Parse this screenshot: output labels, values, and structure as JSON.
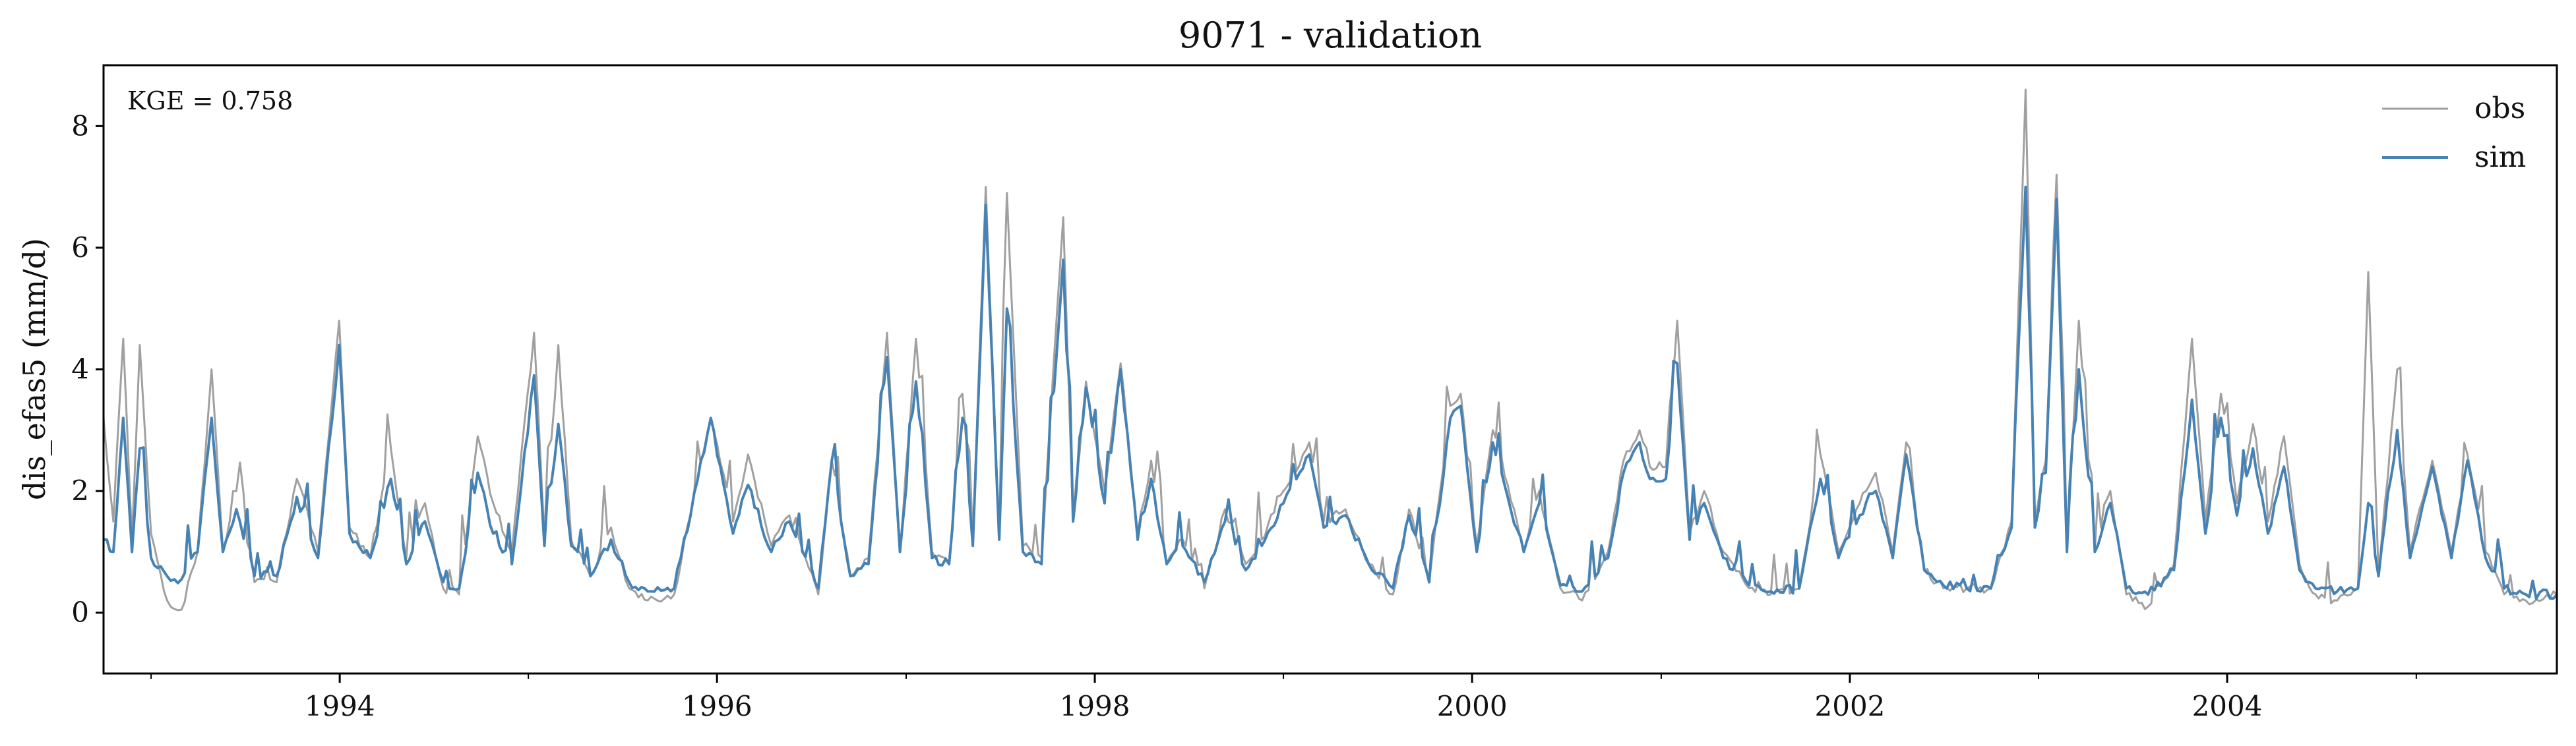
{
  "chart_data": {
    "type": "line",
    "title": "9071 - validation",
    "xlabel": "",
    "ylabel": "dis_efas5 (mm/d)",
    "annotation": "KGE = 0.758",
    "xlim": [
      "1992-10-01",
      "2005-09-30"
    ],
    "ylim": [
      -1,
      9
    ],
    "x_ticks": [
      "1994",
      "1996",
      "1998",
      "2000",
      "2002",
      "2004"
    ],
    "y_ticks": [
      "0",
      "2",
      "4",
      "6",
      "8"
    ],
    "grid": false,
    "legend": "top-right",
    "series": [
      {
        "name": "obs",
        "color": "#a0a0a0",
        "points": [
          [
            "1992-10-01",
            3.2
          ],
          [
            "1992-10-20",
            1.5
          ],
          [
            "1992-11-08",
            4.5
          ],
          [
            "1992-11-25",
            1.2
          ],
          [
            "1992-12-10",
            4.4
          ],
          [
            "1993-01-01",
            1.3
          ],
          [
            "1993-02-01",
            0.2
          ],
          [
            "1993-03-01",
            0.05
          ],
          [
            "1993-04-01",
            1.0
          ],
          [
            "1993-04-28",
            4.0
          ],
          [
            "1993-05-20",
            1.0
          ],
          [
            "1993-06-15",
            2.0
          ],
          [
            "1993-07-20",
            0.5
          ],
          [
            "1993-09-01",
            0.5
          ],
          [
            "1993-10-10",
            2.2
          ],
          [
            "1993-11-20",
            1.0
          ],
          [
            "1993-12-31",
            4.8
          ],
          [
            "1994-01-20",
            1.4
          ],
          [
            "1994-03-01",
            0.9
          ],
          [
            "1994-04-10",
            2.7
          ],
          [
            "1994-05-10",
            0.9
          ],
          [
            "1994-06-15",
            1.8
          ],
          [
            "1994-07-20",
            0.4
          ],
          [
            "1994-08-20",
            0.3
          ],
          [
            "1994-09-25",
            2.9
          ],
          [
            "1994-10-25",
            1.8
          ],
          [
            "1994-11-30",
            1.0
          ],
          [
            "1995-01-12",
            4.6
          ],
          [
            "1995-02-01",
            1.2
          ],
          [
            "1995-02-28",
            4.4
          ],
          [
            "1995-03-25",
            1.2
          ],
          [
            "1995-05-01",
            0.6
          ],
          [
            "1995-06-10",
            1.4
          ],
          [
            "1995-07-15",
            0.4
          ],
          [
            "1995-08-20",
            0.2
          ],
          [
            "1995-10-10",
            0.3
          ],
          [
            "1995-12-20",
            3.2
          ],
          [
            "1996-02-01",
            1.5
          ],
          [
            "1996-03-01",
            2.6
          ],
          [
            "1996-04-15",
            1.1
          ],
          [
            "1996-05-20",
            1.6
          ],
          [
            "1996-07-15",
            0.3
          ],
          [
            "1996-08-10",
            2.5
          ],
          [
            "1996-09-15",
            0.6
          ],
          [
            "1996-10-20",
            0.9
          ],
          [
            "1996-11-25",
            4.6
          ],
          [
            "1996-12-20",
            1.0
          ],
          [
            "1997-01-20",
            4.5
          ],
          [
            "1997-02-20",
            1.0
          ],
          [
            "1997-03-25",
            0.8
          ],
          [
            "1997-04-20",
            3.6
          ],
          [
            "1997-05-10",
            1.2
          ],
          [
            "1997-06-04",
            7.0
          ],
          [
            "1997-06-30",
            1.2
          ],
          [
            "1997-07-15",
            6.9
          ],
          [
            "1997-08-15",
            1.1
          ],
          [
            "1997-09-20",
            0.9
          ],
          [
            "1997-11-01",
            6.5
          ],
          [
            "1997-11-20",
            1.5
          ],
          [
            "1997-12-15",
            3.8
          ],
          [
            "1998-01-20",
            2.0
          ],
          [
            "1998-02-20",
            4.1
          ],
          [
            "1998-03-25",
            1.3
          ],
          [
            "1998-04-20",
            2.5
          ],
          [
            "1998-05-20",
            0.8
          ],
          [
            "1998-06-20",
            1.2
          ],
          [
            "1998-08-01",
            0.4
          ],
          [
            "1998-09-10",
            1.7
          ],
          [
            "1998-10-20",
            0.8
          ],
          [
            "1998-11-20",
            1.2
          ],
          [
            "1999-01-01",
            2.0
          ],
          [
            "1999-02-20",
            2.8
          ],
          [
            "1999-03-20",
            1.5
          ],
          [
            "1999-05-01",
            1.7
          ],
          [
            "1999-06-15",
            0.8
          ],
          [
            "1999-08-01",
            0.3
          ],
          [
            "1999-09-01",
            1.7
          ],
          [
            "1999-10-10",
            0.5
          ],
          [
            "1999-11-20",
            3.4
          ],
          [
            "1999-12-10",
            3.6
          ],
          [
            "2000-01-10",
            1.1
          ],
          [
            "2000-02-10",
            3.0
          ],
          [
            "2000-03-10",
            2.1
          ],
          [
            "2000-04-10",
            1.0
          ],
          [
            "2000-05-10",
            2.0
          ],
          [
            "2000-06-20",
            0.4
          ],
          [
            "2000-08-01",
            0.2
          ],
          [
            "2000-09-20",
            1.0
          ],
          [
            "2000-10-20",
            2.5
          ],
          [
            "2000-11-20",
            3.0
          ],
          [
            "2000-12-10",
            2.4
          ],
          [
            "2001-01-10",
            2.4
          ],
          [
            "2001-02-01",
            4.8
          ],
          [
            "2001-02-25",
            1.3
          ],
          [
            "2001-03-25",
            2.0
          ],
          [
            "2001-05-01",
            1.0
          ],
          [
            "2001-06-20",
            0.4
          ],
          [
            "2001-08-01",
            0.3
          ],
          [
            "2001-09-25",
            0.4
          ],
          [
            "2001-11-05",
            2.6
          ],
          [
            "2001-12-10",
            1.0
          ],
          [
            "2002-01-20",
            1.8
          ],
          [
            "2002-02-20",
            2.3
          ],
          [
            "2002-03-25",
            1.0
          ],
          [
            "2002-04-20",
            2.8
          ],
          [
            "2002-05-25",
            0.7
          ],
          [
            "2002-07-01",
            0.4
          ],
          [
            "2002-08-15",
            0.4
          ],
          [
            "2002-10-01",
            0.4
          ],
          [
            "2002-11-10",
            1.5
          ],
          [
            "2002-12-07",
            8.6
          ],
          [
            "2002-12-25",
            1.5
          ],
          [
            "2003-01-15",
            2.5
          ],
          [
            "2003-02-05",
            7.2
          ],
          [
            "2003-02-25",
            1.0
          ],
          [
            "2003-03-20",
            4.8
          ],
          [
            "2003-04-20",
            1.0
          ],
          [
            "2003-05-20",
            2.0
          ],
          [
            "2003-06-20",
            0.3
          ],
          [
            "2003-08-01",
            0.1
          ],
          [
            "2003-09-20",
            0.8
          ],
          [
            "2003-10-25",
            4.5
          ],
          [
            "2003-11-20",
            1.5
          ],
          [
            "2003-12-20",
            3.6
          ],
          [
            "2004-01-20",
            1.8
          ],
          [
            "2004-02-20",
            3.1
          ],
          [
            "2004-03-20",
            1.5
          ],
          [
            "2004-04-20",
            2.9
          ],
          [
            "2004-05-20",
            0.8
          ],
          [
            "2004-06-20",
            0.3
          ],
          [
            "2004-08-01",
            0.2
          ],
          [
            "2004-09-10",
            0.4
          ],
          [
            "2004-09-30",
            5.6
          ],
          [
            "2004-10-20",
            0.6
          ],
          [
            "2004-11-25",
            4.0
          ],
          [
            "2004-12-20",
            1.0
          ],
          [
            "2005-02-01",
            2.5
          ],
          [
            "2005-03-10",
            1.0
          ],
          [
            "2005-04-10",
            2.6
          ],
          [
            "2005-05-15",
            1.0
          ],
          [
            "2005-06-20",
            0.3
          ],
          [
            "2005-08-01",
            0.2
          ],
          [
            "2005-09-30",
            0.3
          ]
        ]
      },
      {
        "name": "sim",
        "color": "#4682b4",
        "points": [
          [
            "1992-10-01",
            1.2
          ],
          [
            "1992-10-20",
            1.0
          ],
          [
            "1992-11-08",
            3.2
          ],
          [
            "1992-11-25",
            1.0
          ],
          [
            "1992-12-10",
            2.7
          ],
          [
            "1993-01-01",
            0.9
          ],
          [
            "1993-02-01",
            0.6
          ],
          [
            "1993-03-01",
            0.55
          ],
          [
            "1993-04-01",
            1.0
          ],
          [
            "1993-04-28",
            3.2
          ],
          [
            "1993-05-20",
            1.0
          ],
          [
            "1993-06-15",
            1.7
          ],
          [
            "1993-07-20",
            0.6
          ],
          [
            "1993-09-01",
            0.6
          ],
          [
            "1993-10-10",
            1.9
          ],
          [
            "1993-11-20",
            0.9
          ],
          [
            "1993-12-31",
            4.4
          ],
          [
            "1994-01-20",
            1.3
          ],
          [
            "1994-03-01",
            0.9
          ],
          [
            "1994-04-10",
            2.2
          ],
          [
            "1994-05-10",
            0.8
          ],
          [
            "1994-06-15",
            1.5
          ],
          [
            "1994-07-20",
            0.5
          ],
          [
            "1994-08-20",
            0.4
          ],
          [
            "1994-09-25",
            2.3
          ],
          [
            "1994-10-25",
            1.3
          ],
          [
            "1994-11-30",
            0.8
          ],
          [
            "1995-01-12",
            3.9
          ],
          [
            "1995-02-01",
            1.1
          ],
          [
            "1995-02-28",
            3.1
          ],
          [
            "1995-03-25",
            1.1
          ],
          [
            "1995-05-01",
            0.6
          ],
          [
            "1995-06-10",
            1.2
          ],
          [
            "1995-07-15",
            0.5
          ],
          [
            "1995-08-20",
            0.35
          ],
          [
            "1995-10-10",
            0.4
          ],
          [
            "1995-12-20",
            3.2
          ],
          [
            "1996-02-01",
            1.3
          ],
          [
            "1996-03-01",
            2.1
          ],
          [
            "1996-04-15",
            1.0
          ],
          [
            "1996-05-20",
            1.5
          ],
          [
            "1996-07-15",
            0.4
          ],
          [
            "1996-08-10",
            2.5
          ],
          [
            "1996-09-15",
            0.6
          ],
          [
            "1996-10-20",
            0.8
          ],
          [
            "1996-11-25",
            4.2
          ],
          [
            "1996-12-20",
            1.0
          ],
          [
            "1997-01-20",
            3.8
          ],
          [
            "1997-02-20",
            0.9
          ],
          [
            "1997-03-25",
            0.8
          ],
          [
            "1997-04-20",
            3.2
          ],
          [
            "1997-05-10",
            1.1
          ],
          [
            "1997-06-04",
            6.7
          ],
          [
            "1997-06-30",
            1.2
          ],
          [
            "1997-07-15",
            5.0
          ],
          [
            "1997-08-15",
            1.0
          ],
          [
            "1997-09-20",
            0.8
          ],
          [
            "1997-11-01",
            5.8
          ],
          [
            "1997-11-20",
            1.5
          ],
          [
            "1997-12-15",
            3.7
          ],
          [
            "1998-01-20",
            1.8
          ],
          [
            "1998-02-20",
            4.0
          ],
          [
            "1998-03-25",
            1.2
          ],
          [
            "1998-04-20",
            2.2
          ],
          [
            "1998-05-20",
            0.8
          ],
          [
            "1998-06-20",
            1.1
          ],
          [
            "1998-08-01",
            0.5
          ],
          [
            "1998-09-10",
            1.5
          ],
          [
            "1998-10-20",
            0.7
          ],
          [
            "1998-11-20",
            1.1
          ],
          [
            "1999-01-01",
            1.8
          ],
          [
            "1999-02-20",
            2.6
          ],
          [
            "1999-03-20",
            1.4
          ],
          [
            "1999-05-01",
            1.6
          ],
          [
            "1999-06-15",
            0.8
          ],
          [
            "1999-08-01",
            0.4
          ],
          [
            "1999-09-01",
            1.6
          ],
          [
            "1999-10-10",
            0.5
          ],
          [
            "1999-11-20",
            3.2
          ],
          [
            "1999-12-10",
            3.4
          ],
          [
            "2000-01-10",
            1.0
          ],
          [
            "2000-02-10",
            2.8
          ],
          [
            "2000-03-10",
            1.9
          ],
          [
            "2000-04-10",
            1.0
          ],
          [
            "2000-05-10",
            1.8
          ],
          [
            "2000-06-20",
            0.45
          ],
          [
            "2000-08-01",
            0.35
          ],
          [
            "2000-09-20",
            0.9
          ],
          [
            "2000-10-20",
            2.3
          ],
          [
            "2000-11-20",
            2.8
          ],
          [
            "2000-12-10",
            2.2
          ],
          [
            "2001-01-10",
            2.2
          ],
          [
            "2001-02-01",
            4.1
          ],
          [
            "2001-02-25",
            1.2
          ],
          [
            "2001-03-25",
            1.8
          ],
          [
            "2001-05-01",
            0.9
          ],
          [
            "2001-06-20",
            0.45
          ],
          [
            "2001-08-01",
            0.35
          ],
          [
            "2001-09-25",
            0.4
          ],
          [
            "2001-11-05",
            2.2
          ],
          [
            "2001-12-10",
            0.9
          ],
          [
            "2002-01-20",
            1.6
          ],
          [
            "2002-02-20",
            2.0
          ],
          [
            "2002-03-25",
            0.9
          ],
          [
            "2002-04-20",
            2.6
          ],
          [
            "2002-05-25",
            0.7
          ],
          [
            "2002-07-01",
            0.45
          ],
          [
            "2002-08-15",
            0.4
          ],
          [
            "2002-10-01",
            0.4
          ],
          [
            "2002-11-10",
            1.4
          ],
          [
            "2002-12-07",
            7.0
          ],
          [
            "2002-12-25",
            1.4
          ],
          [
            "2003-01-15",
            2.3
          ],
          [
            "2003-02-05",
            6.8
          ],
          [
            "2003-02-25",
            1.0
          ],
          [
            "2003-03-20",
            4.0
          ],
          [
            "2003-04-20",
            1.0
          ],
          [
            "2003-05-20",
            1.8
          ],
          [
            "2003-06-20",
            0.4
          ],
          [
            "2003-08-01",
            0.3
          ],
          [
            "2003-09-20",
            0.7
          ],
          [
            "2003-10-25",
            3.5
          ],
          [
            "2003-11-20",
            1.3
          ],
          [
            "2003-12-20",
            3.2
          ],
          [
            "2004-01-20",
            1.6
          ],
          [
            "2004-02-20",
            2.7
          ],
          [
            "2004-03-20",
            1.3
          ],
          [
            "2004-04-20",
            2.4
          ],
          [
            "2004-05-20",
            0.7
          ],
          [
            "2004-06-20",
            0.4
          ],
          [
            "2004-08-01",
            0.35
          ],
          [
            "2004-09-10",
            0.4
          ],
          [
            "2004-09-30",
            1.8
          ],
          [
            "2004-10-20",
            0.6
          ],
          [
            "2004-11-25",
            3.0
          ],
          [
            "2004-12-20",
            0.9
          ],
          [
            "2005-02-01",
            2.4
          ],
          [
            "2005-03-10",
            0.9
          ],
          [
            "2005-04-10",
            2.5
          ],
          [
            "2005-05-15",
            0.9
          ],
          [
            "2005-06-20",
            0.4
          ],
          [
            "2005-08-01",
            0.3
          ],
          [
            "2005-09-30",
            0.3
          ]
        ]
      }
    ]
  }
}
